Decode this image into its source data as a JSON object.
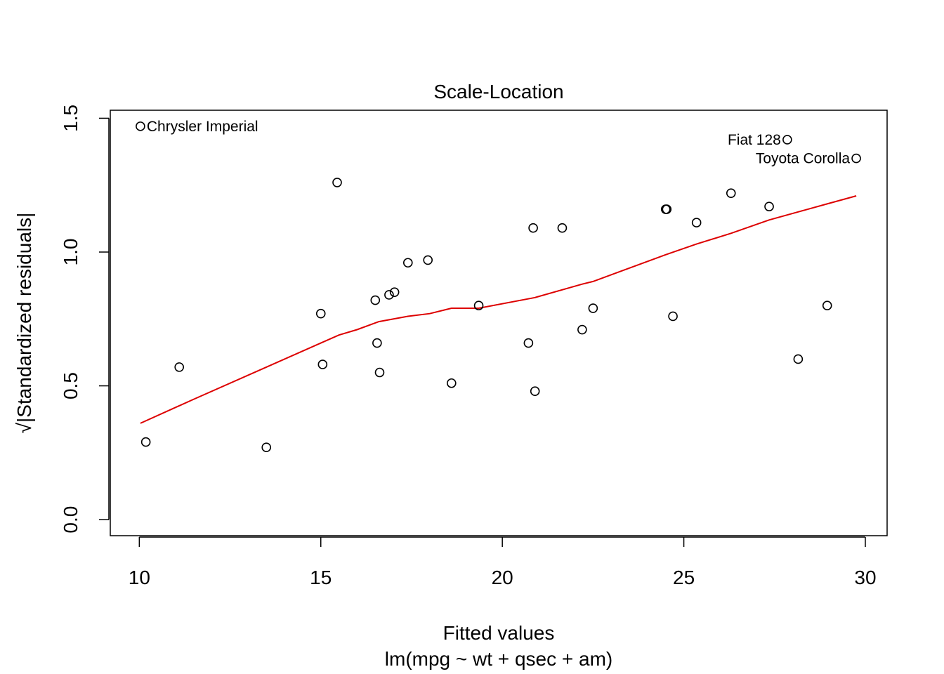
{
  "chart_data": {
    "type": "scatter",
    "title": "Scale-Location",
    "xlabel": "Fitted values",
    "subtitle": "lm(mpg ~ wt + qsec + am)",
    "ylabel_prefix": "√",
    "ylabel": "|Standardized residuals|",
    "xlim": [
      9.2,
      30.6
    ],
    "ylim": [
      -0.06,
      1.53
    ],
    "xticks": [
      "10",
      "15",
      "20",
      "25",
      "30"
    ],
    "yticks": [
      "0.0",
      "0.5",
      "1.0",
      "1.5"
    ],
    "grid": false,
    "colors": {
      "points": "#000000",
      "smooth": "#dd0000"
    },
    "points": [
      {
        "x": 10.03,
        "y": 1.47,
        "label": "Chrysler Imperial"
      },
      {
        "x": 10.18,
        "y": 0.29
      },
      {
        "x": 11.1,
        "y": 0.57
      },
      {
        "x": 13.5,
        "y": 0.27
      },
      {
        "x": 15.0,
        "y": 0.77
      },
      {
        "x": 15.05,
        "y": 0.58
      },
      {
        "x": 15.45,
        "y": 1.26
      },
      {
        "x": 16.5,
        "y": 0.82
      },
      {
        "x": 16.55,
        "y": 0.66
      },
      {
        "x": 16.62,
        "y": 0.55
      },
      {
        "x": 16.88,
        "y": 0.84
      },
      {
        "x": 17.03,
        "y": 0.85
      },
      {
        "x": 17.4,
        "y": 0.96
      },
      {
        "x": 17.95,
        "y": 0.97
      },
      {
        "x": 18.6,
        "y": 0.51
      },
      {
        "x": 19.35,
        "y": 0.8
      },
      {
        "x": 20.72,
        "y": 0.66
      },
      {
        "x": 20.85,
        "y": 1.09
      },
      {
        "x": 20.9,
        "y": 0.48
      },
      {
        "x": 21.65,
        "y": 1.09
      },
      {
        "x": 22.2,
        "y": 0.71
      },
      {
        "x": 22.5,
        "y": 0.79
      },
      {
        "x": 24.5,
        "y": 1.16
      },
      {
        "x": 24.53,
        "y": 1.16
      },
      {
        "x": 24.7,
        "y": 0.76
      },
      {
        "x": 25.35,
        "y": 1.11
      },
      {
        "x": 26.3,
        "y": 1.22
      },
      {
        "x": 27.35,
        "y": 1.17
      },
      {
        "x": 27.85,
        "y": 1.42,
        "label": "Fiat 128"
      },
      {
        "x": 28.15,
        "y": 0.6
      },
      {
        "x": 28.95,
        "y": 0.8
      },
      {
        "x": 29.75,
        "y": 1.35,
        "label": "Toyota Corolla"
      }
    ],
    "smooth_line": [
      {
        "x": 10.03,
        "y": 0.36
      },
      {
        "x": 11.5,
        "y": 0.45
      },
      {
        "x": 13.5,
        "y": 0.57
      },
      {
        "x": 15.0,
        "y": 0.66
      },
      {
        "x": 15.5,
        "y": 0.69
      },
      {
        "x": 16.0,
        "y": 0.71
      },
      {
        "x": 16.6,
        "y": 0.74
      },
      {
        "x": 17.4,
        "y": 0.76
      },
      {
        "x": 18.0,
        "y": 0.77
      },
      {
        "x": 18.6,
        "y": 0.79
      },
      {
        "x": 19.35,
        "y": 0.79
      },
      {
        "x": 20.9,
        "y": 0.83
      },
      {
        "x": 22.2,
        "y": 0.88
      },
      {
        "x": 22.5,
        "y": 0.89
      },
      {
        "x": 24.5,
        "y": 0.99
      },
      {
        "x": 25.35,
        "y": 1.03
      },
      {
        "x": 26.3,
        "y": 1.07
      },
      {
        "x": 27.35,
        "y": 1.12
      },
      {
        "x": 28.15,
        "y": 1.15
      },
      {
        "x": 28.95,
        "y": 1.18
      },
      {
        "x": 29.75,
        "y": 1.21
      }
    ]
  }
}
